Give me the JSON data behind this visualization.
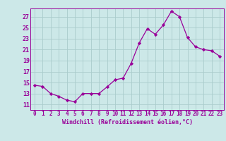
{
  "x": [
    0,
    1,
    2,
    3,
    4,
    5,
    6,
    7,
    8,
    9,
    10,
    11,
    12,
    13,
    14,
    15,
    16,
    17,
    18,
    19,
    20,
    21,
    22,
    23
  ],
  "y": [
    14.5,
    14.3,
    13.0,
    12.5,
    11.8,
    11.5,
    13.0,
    13.0,
    13.0,
    14.2,
    15.5,
    15.8,
    18.5,
    22.2,
    24.8,
    23.8,
    25.5,
    28.0,
    27.0,
    23.2,
    21.5,
    21.0,
    20.8,
    19.8
  ],
  "line_color": "#990099",
  "marker": "D",
  "marker_size": 2.2,
  "bg_color": "#cce8e8",
  "grid_color": "#aacccc",
  "xlabel": "Windchill (Refroidissement éolien,°C)",
  "xlabel_color": "#990099",
  "tick_color": "#990099",
  "ylim": [
    10,
    28.5
  ],
  "yticks": [
    11,
    13,
    15,
    17,
    19,
    21,
    23,
    25,
    27
  ],
  "xlim": [
    -0.5,
    23.5
  ],
  "xticks": [
    0,
    1,
    2,
    3,
    4,
    5,
    6,
    7,
    8,
    9,
    10,
    11,
    12,
    13,
    14,
    15,
    16,
    17,
    18,
    19,
    20,
    21,
    22,
    23
  ]
}
